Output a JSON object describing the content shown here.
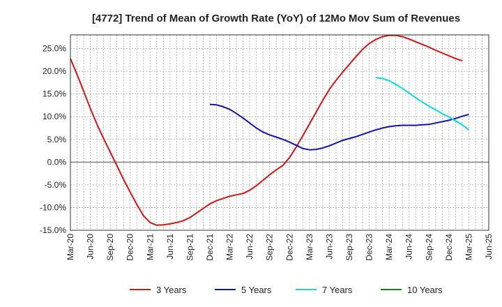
{
  "chart_data": {
    "type": "line",
    "title": "[4772]  Trend of Mean of Growth Rate (YoY) of 12Mo Mov Sum of Revenues",
    "xlabel": "",
    "ylabel": "",
    "ylim": [
      -15,
      28
    ],
    "yticks": [
      {
        "value": 25,
        "label": "25.0%"
      },
      {
        "value": 20,
        "label": "20.0%"
      },
      {
        "value": 15,
        "label": "15.0%"
      },
      {
        "value": 10,
        "label": "10.0%"
      },
      {
        "value": 5,
        "label": "5.0%"
      },
      {
        "value": 0,
        "label": "0.0%"
      },
      {
        "value": -5,
        "label": "-5.0%"
      },
      {
        "value": -10,
        "label": "-10.0%"
      },
      {
        "value": -15,
        "label": "-15.0%"
      }
    ],
    "xrange": [
      0,
      63
    ],
    "xticks": [
      {
        "index": 0,
        "label": "Mar-20"
      },
      {
        "index": 3,
        "label": "Jun-20"
      },
      {
        "index": 6,
        "label": "Sep-20"
      },
      {
        "index": 9,
        "label": "Dec-20"
      },
      {
        "index": 12,
        "label": "Mar-21"
      },
      {
        "index": 15,
        "label": "Jun-21"
      },
      {
        "index": 18,
        "label": "Sep-21"
      },
      {
        "index": 21,
        "label": "Dec-21"
      },
      {
        "index": 24,
        "label": "Mar-22"
      },
      {
        "index": 27,
        "label": "Jun-22"
      },
      {
        "index": 30,
        "label": "Sep-22"
      },
      {
        "index": 33,
        "label": "Dec-22"
      },
      {
        "index": 36,
        "label": "Mar-23"
      },
      {
        "index": 39,
        "label": "Jun-23"
      },
      {
        "index": 42,
        "label": "Sep-23"
      },
      {
        "index": 45,
        "label": "Dec-23"
      },
      {
        "index": 48,
        "label": "Mar-24"
      },
      {
        "index": 51,
        "label": "Jun-24"
      },
      {
        "index": 54,
        "label": "Sep-24"
      },
      {
        "index": 57,
        "label": "Dec-24"
      },
      {
        "index": 60,
        "label": "Mar-25"
      },
      {
        "index": 63,
        "label": "Jun-25"
      }
    ],
    "grid": true,
    "legend_position": "bottom",
    "series": [
      {
        "name": "3 Years",
        "color": "#dd1111",
        "start": 0,
        "values": [
          22.8,
          19.3,
          15.6,
          11.8,
          8.3,
          5.2,
          2.2,
          -0.8,
          -3.8,
          -6.6,
          -9.3,
          -11.8,
          -13.3,
          -13.9,
          -13.8,
          -13.6,
          -13.3,
          -12.9,
          -12.2,
          -11.2,
          -10.2,
          -9.2,
          -8.5,
          -8.0,
          -7.5,
          -7.2,
          -6.9,
          -6.2,
          -5.2,
          -4.0,
          -2.8,
          -1.7,
          -0.7,
          1.0,
          3.3,
          5.8,
          8.4,
          11.0,
          13.6,
          16.0,
          18.0,
          19.8,
          21.5,
          23.2,
          24.8,
          26.1,
          27.0,
          27.6,
          27.9,
          27.9,
          27.6,
          27.1,
          26.5,
          25.9,
          25.3,
          24.6,
          24.0,
          23.4,
          22.8,
          22.3
        ]
      },
      {
        "name": "5 Years",
        "color": "#1111bb",
        "start": 21,
        "values": [
          12.7,
          12.6,
          12.2,
          11.6,
          10.7,
          9.7,
          8.6,
          7.5,
          6.6,
          6.0,
          5.5,
          5.0,
          4.4,
          3.7,
          3.0,
          2.7,
          2.8,
          3.1,
          3.6,
          4.2,
          4.8,
          5.2,
          5.6,
          6.1,
          6.6,
          7.1,
          7.5,
          7.8,
          8.0,
          8.1,
          8.1,
          8.1,
          8.2,
          8.3,
          8.6,
          8.9,
          9.2,
          9.6,
          10.1,
          10.5
        ]
      },
      {
        "name": "7 Years",
        "color": "#00e0e0",
        "start": 46,
        "values": [
          18.6,
          18.4,
          17.9,
          17.1,
          16.2,
          15.2,
          14.2,
          13.2,
          12.3,
          11.5,
          10.7,
          9.9,
          9.1,
          8.2,
          7.1
        ]
      },
      {
        "name": "10 Years",
        "color": "#118811",
        "start": 0,
        "values": []
      }
    ]
  }
}
